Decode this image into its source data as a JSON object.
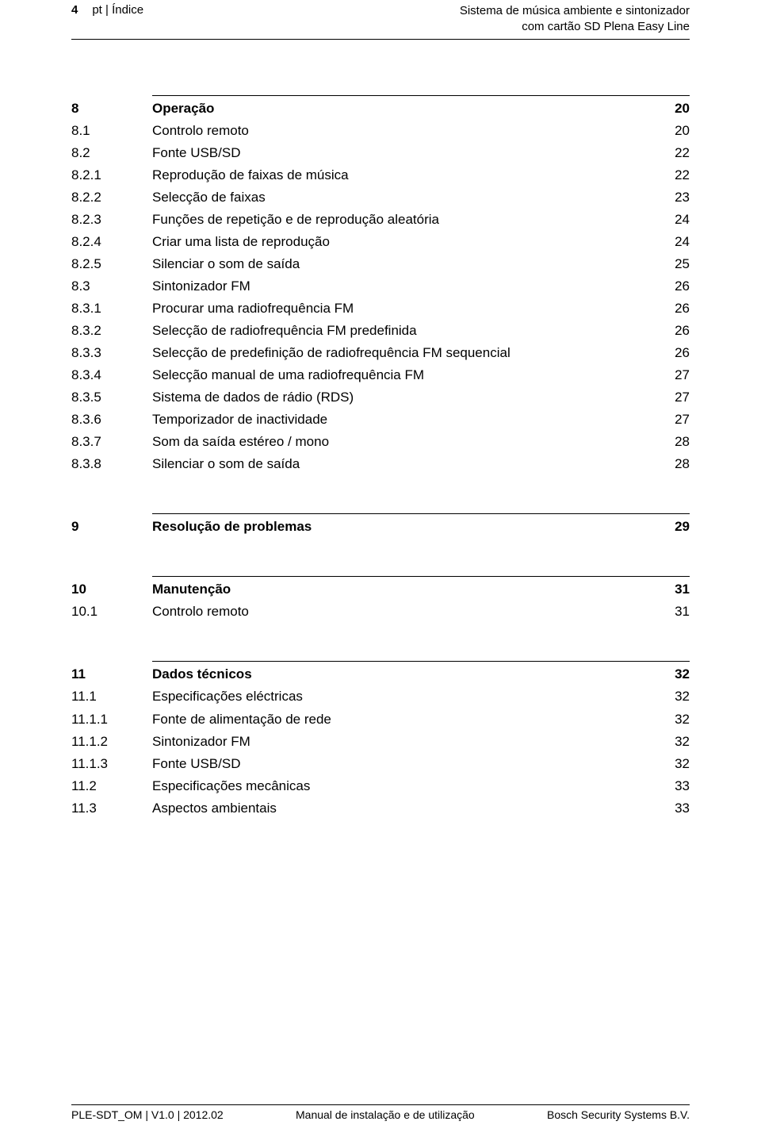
{
  "header": {
    "pageNumber": "4",
    "breadcrumb": "pt | Índice",
    "productLine1": "Sistema de música ambiente e sintonizador",
    "productLine2": "com cartão SD Plena Easy Line"
  },
  "sections": [
    {
      "head": {
        "num": "8",
        "title": "Operação",
        "page": "20"
      },
      "rows": [
        {
          "num": "8.1",
          "title": "Controlo remoto",
          "page": "20"
        },
        {
          "num": "8.2",
          "title": "Fonte USB/SD",
          "page": "22"
        },
        {
          "num": "8.2.1",
          "title": "Reprodução de faixas de música",
          "page": "22"
        },
        {
          "num": "8.2.2",
          "title": "Selecção de faixas",
          "page": "23"
        },
        {
          "num": "8.2.3",
          "title": "Funções de repetição e de reprodução aleatória",
          "page": "24"
        },
        {
          "num": "8.2.4",
          "title": "Criar uma lista de reprodução",
          "page": "24"
        },
        {
          "num": "8.2.5",
          "title": "Silenciar o som de saída",
          "page": "25"
        },
        {
          "num": "8.3",
          "title": "Sintonizador FM",
          "page": "26"
        },
        {
          "num": "8.3.1",
          "title": "Procurar uma radiofrequência FM",
          "page": "26"
        },
        {
          "num": "8.3.2",
          "title": "Selecção de radiofrequência FM predefinida",
          "page": "26"
        },
        {
          "num": "8.3.3",
          "title": "Selecção de predefinição de radiofrequência FM sequencial",
          "page": "26"
        },
        {
          "num": "8.3.4",
          "title": "Selecção manual de uma radiofrequência FM",
          "page": "27"
        },
        {
          "num": "8.3.5",
          "title": "Sistema de dados de rádio (RDS)",
          "page": "27"
        },
        {
          "num": "8.3.6",
          "title": "Temporizador de inactividade",
          "page": "27"
        },
        {
          "num": "8.3.7",
          "title": "Som da saída estéreo / mono",
          "page": "28"
        },
        {
          "num": "8.3.8",
          "title": "Silenciar o som de saída",
          "page": "28"
        }
      ]
    },
    {
      "head": {
        "num": "9",
        "title": "Resolução de problemas",
        "page": "29"
      },
      "rows": []
    },
    {
      "head": {
        "num": "10",
        "title": "Manutenção",
        "page": "31"
      },
      "rows": [
        {
          "num": "10.1",
          "title": "Controlo remoto",
          "page": "31"
        }
      ]
    },
    {
      "head": {
        "num": "11",
        "title": "Dados técnicos",
        "page": "32"
      },
      "rows": [
        {
          "num": "11.1",
          "title": "Especificações eléctricas",
          "page": "32"
        },
        {
          "num": "11.1.1",
          "title": "Fonte de alimentação de rede",
          "page": "32"
        },
        {
          "num": "11.1.2",
          "title": "Sintonizador FM",
          "page": "32"
        },
        {
          "num": "11.1.3",
          "title": "Fonte USB/SD",
          "page": "32"
        },
        {
          "num": "11.2",
          "title": "Especificações mecânicas",
          "page": "33"
        },
        {
          "num": "11.3",
          "title": "Aspectos ambientais",
          "page": "33"
        }
      ]
    }
  ],
  "footer": {
    "left": "PLE-SDT_OM | V1.0 | 2012.02",
    "center": "Manual de instalação e de utilização",
    "right": "Bosch Security Systems B.V."
  }
}
